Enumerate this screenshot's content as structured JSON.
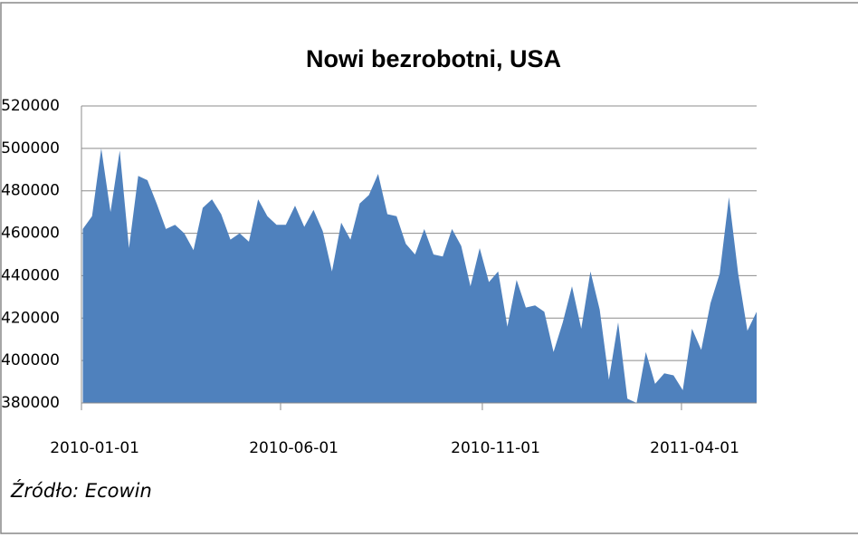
{
  "chart_data": {
    "type": "area",
    "title": "Nowi bezrobotni, USA",
    "source": "Źródło: Ecowin",
    "color": "#4f81bd",
    "grid": true,
    "x": [
      "2010-01-02",
      "2010-01-09",
      "2010-01-16",
      "2010-01-23",
      "2010-01-30",
      "2010-02-06",
      "2010-02-13",
      "2010-02-20",
      "2010-02-27",
      "2010-03-06",
      "2010-03-13",
      "2010-03-20",
      "2010-03-27",
      "2010-04-03",
      "2010-04-10",
      "2010-04-17",
      "2010-04-24",
      "2010-05-01",
      "2010-05-08",
      "2010-05-15",
      "2010-05-22",
      "2010-05-29",
      "2010-06-05",
      "2010-06-12",
      "2010-06-19",
      "2010-06-26",
      "2010-07-03",
      "2010-07-10",
      "2010-07-17",
      "2010-07-24",
      "2010-07-31",
      "2010-08-07",
      "2010-08-14",
      "2010-08-21",
      "2010-08-28",
      "2010-09-04",
      "2010-09-11",
      "2010-09-18",
      "2010-09-25",
      "2010-10-02",
      "2010-10-09",
      "2010-10-16",
      "2010-10-23",
      "2010-10-30",
      "2010-11-06",
      "2010-11-13",
      "2010-11-20",
      "2010-11-27",
      "2010-12-04",
      "2010-12-11",
      "2010-12-18",
      "2010-12-25",
      "2011-01-01",
      "2011-01-08",
      "2011-01-15",
      "2011-01-22",
      "2011-01-29",
      "2011-02-05",
      "2011-02-12",
      "2011-02-19",
      "2011-02-26",
      "2011-03-05",
      "2011-03-12",
      "2011-03-19",
      "2011-03-26",
      "2011-04-02",
      "2011-04-09",
      "2011-04-16",
      "2011-04-23",
      "2011-04-30",
      "2011-05-07",
      "2011-05-14",
      "2011-05-21",
      "2011-05-28"
    ],
    "values": [
      462000,
      468000,
      500000,
      470000,
      499000,
      453000,
      487000,
      485000,
      474000,
      462000,
      464000,
      460000,
      452000,
      472000,
      476000,
      469000,
      457000,
      460000,
      456000,
      476000,
      468000,
      464000,
      464000,
      473000,
      463000,
      471000,
      461000,
      442000,
      465000,
      457000,
      474000,
      478000,
      488000,
      469000,
      468000,
      455000,
      450000,
      462000,
      450000,
      449000,
      462000,
      454000,
      435000,
      453000,
      437000,
      442000,
      416000,
      438000,
      425000,
      426000,
      423000,
      404000,
      418000,
      435000,
      415000,
      442000,
      424000,
      391000,
      418000,
      382000,
      380000,
      404000,
      389000,
      394000,
      393000,
      386000,
      415000,
      405000,
      427000,
      441000,
      477000,
      441000,
      414000,
      423000
    ],
    "xlim": [
      "2010-01-01",
      "2011-05-28"
    ],
    "xticks": [
      "2010-01-01",
      "2010-06-01",
      "2010-11-01",
      "2011-04-01"
    ],
    "ylim": [
      380000,
      520000
    ],
    "yticks": [
      380000,
      400000,
      420000,
      440000,
      460000,
      480000,
      500000,
      520000
    ]
  }
}
